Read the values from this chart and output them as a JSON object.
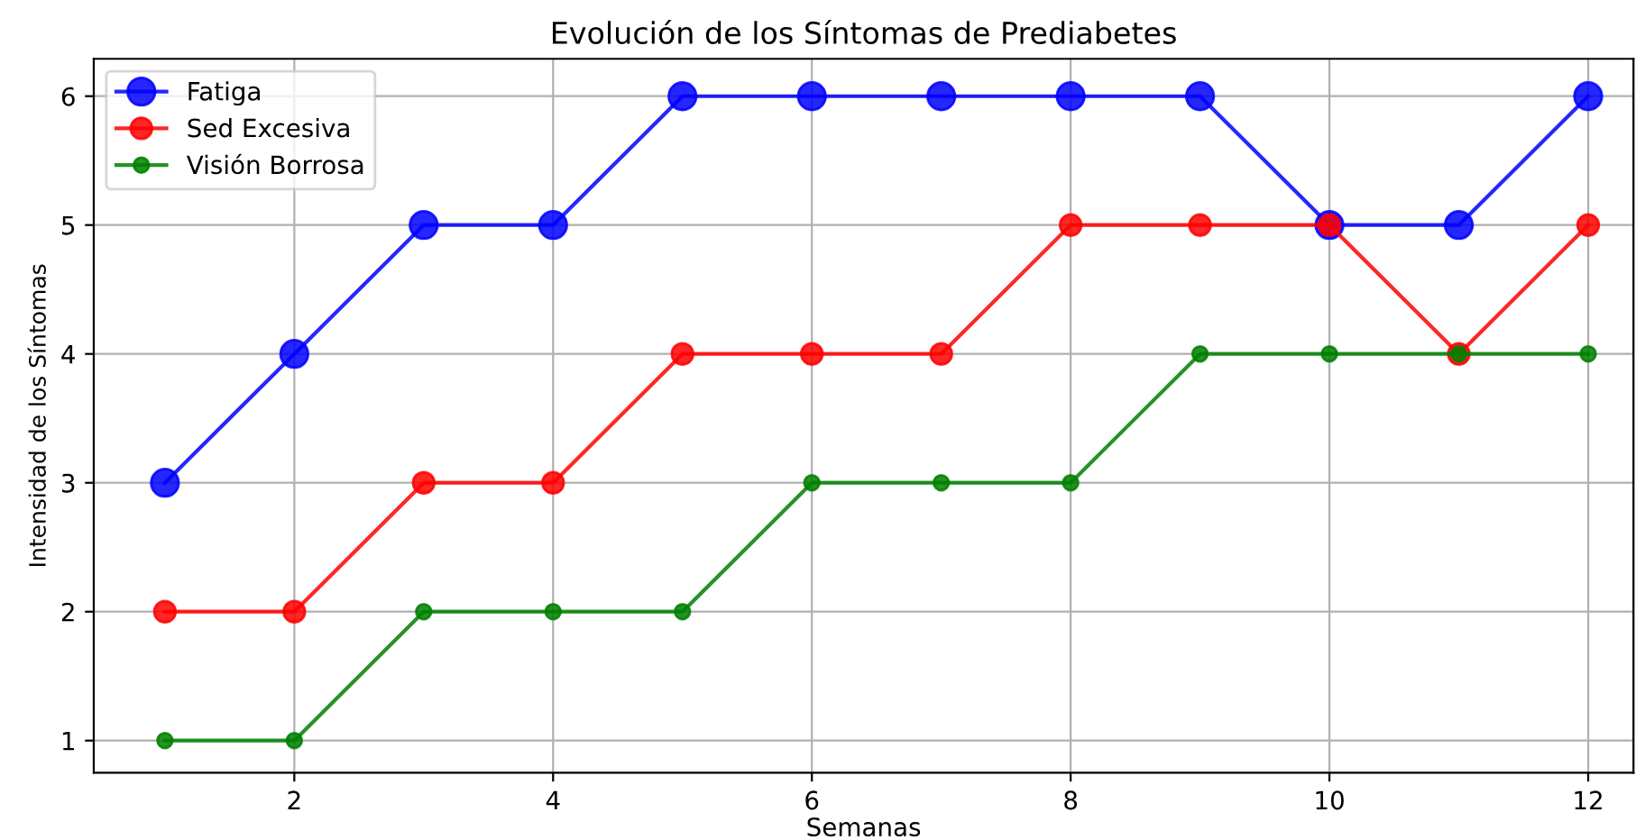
{
  "chart_data": {
    "type": "line",
    "title": "Evolución de los Síntomas de Prediabetes",
    "xlabel": "Semanas",
    "ylabel": "Intensidad de los Síntomas",
    "x": [
      1,
      2,
      3,
      4,
      5,
      6,
      7,
      8,
      9,
      10,
      11,
      12
    ],
    "series": [
      {
        "name": "Fatiga",
        "color": "#0000ff",
        "values": [
          3,
          4,
          5,
          5,
          6,
          6,
          6,
          6,
          6,
          5,
          5,
          6
        ]
      },
      {
        "name": "Sed Excesiva",
        "color": "#ff0000",
        "values": [
          2,
          2,
          3,
          3,
          4,
          4,
          4,
          5,
          5,
          5,
          4,
          5
        ]
      },
      {
        "name": "Visión Borrosa",
        "color": "#008000",
        "values": [
          1,
          1,
          2,
          2,
          2,
          3,
          3,
          3,
          4,
          4,
          4,
          4
        ]
      }
    ],
    "xlim": [
      0.45,
      12.35
    ],
    "xticks": [
      2,
      4,
      6,
      8,
      10,
      12
    ],
    "ylim": [
      0.75,
      6.29
    ],
    "yticks": [
      1,
      2,
      3,
      4,
      5,
      6
    ],
    "grid": true,
    "legend": "top left",
    "marker": "circle",
    "line_style": "solid"
  }
}
